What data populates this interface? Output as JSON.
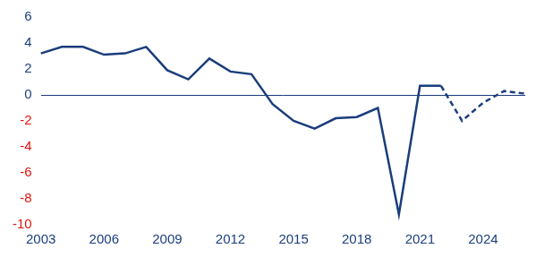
{
  "chart_data": {
    "type": "line",
    "categories": [
      "2003",
      null,
      null,
      "2006",
      null,
      null,
      "2009",
      null,
      null,
      "2012",
      null,
      null,
      "2015",
      null,
      null,
      "2018",
      null,
      null,
      "2021",
      null,
      null,
      "2024",
      null,
      null
    ],
    "series": [
      {
        "color": "#1a3d7c",
        "line_style": "solid",
        "values": [
          3.2,
          3.7,
          3.7,
          3.1,
          3.2,
          3.7,
          1.9,
          1.2,
          2.8,
          1.8,
          1.6,
          -0.7,
          -2.0,
          -2.6,
          -1.8,
          -1.7,
          -1.0,
          -9.2,
          0.7,
          0.7,
          null,
          null,
          null,
          null
        ]
      },
      {
        "color": "#1a3d7c",
        "line_style": "dashed",
        "values": [
          null,
          null,
          null,
          null,
          null,
          null,
          null,
          null,
          null,
          null,
          null,
          null,
          null,
          null,
          null,
          null,
          null,
          null,
          null,
          0.7,
          -2.0,
          -0.6,
          0.3,
          0.1
        ]
      }
    ],
    "ylim": [
      -10,
      6
    ],
    "yticks": [
      -10,
      -8,
      -6,
      -4,
      -2,
      0,
      2,
      4,
      6
    ],
    "grid": false
  }
}
